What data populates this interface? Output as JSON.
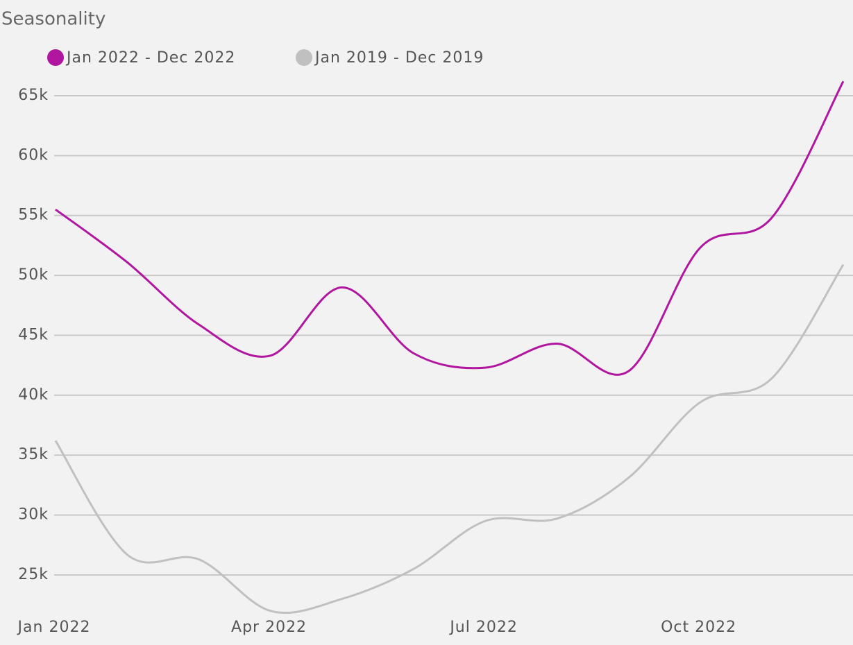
{
  "chart_data": {
    "type": "line",
    "title": "Seasonality",
    "categories": [
      "Jan 2022",
      null,
      null,
      "Apr 2022",
      null,
      null,
      "Jul 2022",
      null,
      null,
      "Oct 2022",
      null,
      null
    ],
    "series": [
      {
        "name": "Jan 2022 - Dec 2022",
        "color": "#b0169f",
        "values": [
          55500,
          51100,
          45900,
          43300,
          49000,
          43500,
          42300,
          44300,
          42000,
          52300,
          54800,
          66200
        ]
      },
      {
        "name": "Jan 2019 - Dec 2019",
        "color": "#c0c0c0",
        "values": [
          36200,
          26700,
          26300,
          22000,
          23000,
          25500,
          29500,
          29700,
          33100,
          39400,
          41400,
          50900
        ]
      }
    ],
    "ylim": [
      22000,
      67000
    ],
    "yticks": [
      {
        "value": 25000,
        "label": "25k"
      },
      {
        "value": 30000,
        "label": "30k"
      },
      {
        "value": 35000,
        "label": "35k"
      },
      {
        "value": 40000,
        "label": "40k"
      },
      {
        "value": 45000,
        "label": "45k"
      },
      {
        "value": 50000,
        "label": "50k"
      },
      {
        "value": 55000,
        "label": "55k"
      },
      {
        "value": 60000,
        "label": "60k"
      },
      {
        "value": 65000,
        "label": "65k"
      }
    ],
    "grid": true
  }
}
